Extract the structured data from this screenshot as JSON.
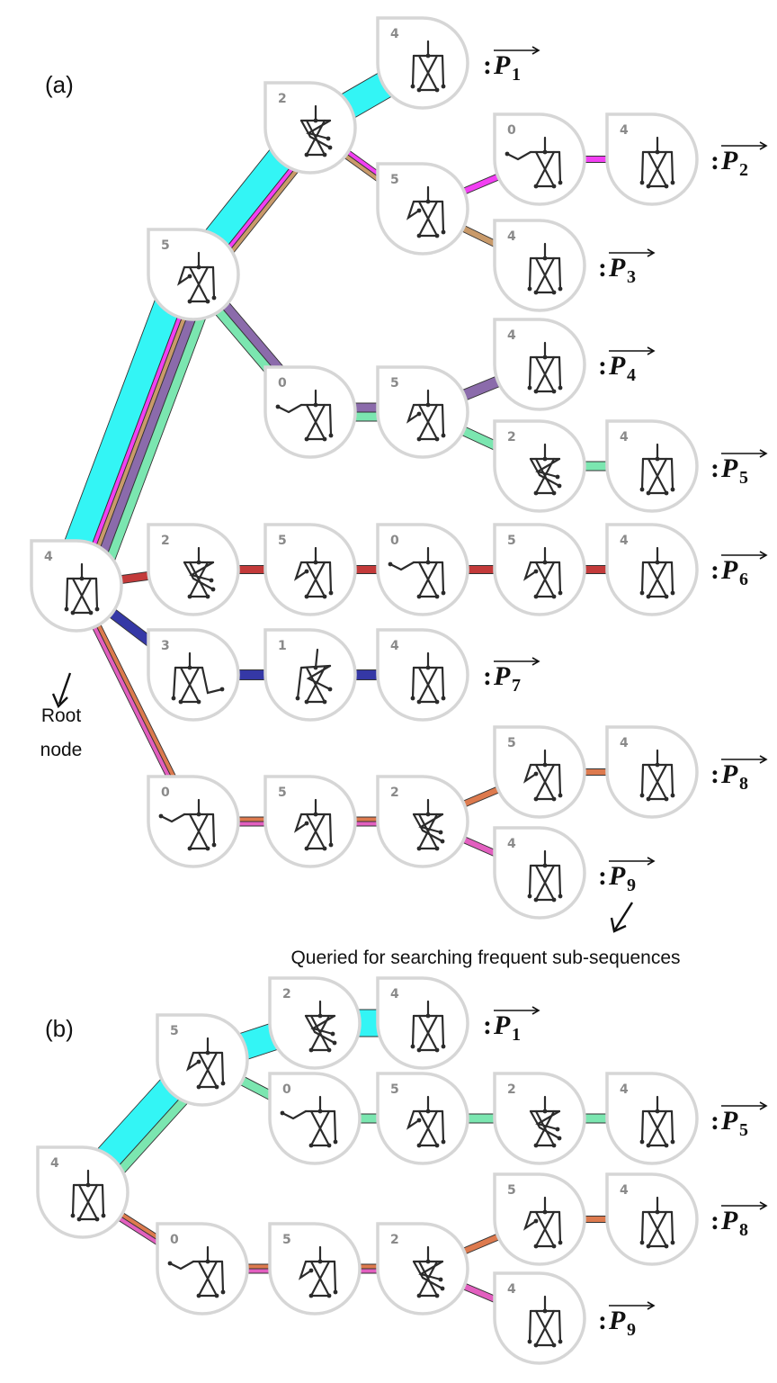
{
  "panels": [
    {
      "id": "a",
      "label": "(a)"
    },
    {
      "id": "b",
      "label": "(b)"
    }
  ],
  "annotations": {
    "root": [
      "Root",
      "node"
    ],
    "query": "Queried for searching frequent sub-sequences"
  },
  "path_label": {
    "colon": ":",
    "letter": "P"
  },
  "colors": {
    "cyan": "#33f5f5",
    "magenta": "#f23ff2",
    "tan": "#c99a6a",
    "purple": "#8b6bab",
    "mint": "#7be6b0",
    "red": "#c33a3a",
    "navy": "#3538a6",
    "pink": "#e25fbf",
    "orange": "#dd7a4e"
  },
  "poses": {
    "0": "arm-extended",
    "1": "arms-crossed-left",
    "2": "arms-crossed",
    "3": "arm-raised-right",
    "4": "standing",
    "5": "arm-bent"
  },
  "nodes_a": [
    {
      "id": "a_root",
      "label": "4"
    },
    {
      "id": "a_5",
      "label": "5"
    },
    {
      "id": "a_2top",
      "label": "2"
    },
    {
      "id": "a_4p1",
      "label": "4"
    },
    {
      "id": "a_5b",
      "label": "5"
    },
    {
      "id": "a_0p2",
      "label": "0"
    },
    {
      "id": "a_4p2",
      "label": "4"
    },
    {
      "id": "a_4p3",
      "label": "4"
    },
    {
      "id": "a_0c",
      "label": "0"
    },
    {
      "id": "a_5c",
      "label": "5"
    },
    {
      "id": "a_4p4",
      "label": "4"
    },
    {
      "id": "a_2p5",
      "label": "2"
    },
    {
      "id": "a_4p5",
      "label": "4"
    },
    {
      "id": "a_2r6",
      "label": "2"
    },
    {
      "id": "a_5r6",
      "label": "5"
    },
    {
      "id": "a_0r6",
      "label": "0"
    },
    {
      "id": "a_5r6b",
      "label": "5"
    },
    {
      "id": "a_4p6",
      "label": "4"
    },
    {
      "id": "a_3r7",
      "label": "3"
    },
    {
      "id": "a_1r7",
      "label": "1"
    },
    {
      "id": "a_4p7",
      "label": "4"
    },
    {
      "id": "a_0r8",
      "label": "0"
    },
    {
      "id": "a_5r8",
      "label": "5"
    },
    {
      "id": "a_2r8",
      "label": "2"
    },
    {
      "id": "a_5p8",
      "label": "5"
    },
    {
      "id": "a_4p8",
      "label": "4"
    },
    {
      "id": "a_4p9",
      "label": "4"
    }
  ],
  "nodes_b": [
    {
      "id": "b_root",
      "label": "4"
    },
    {
      "id": "b_5",
      "label": "5"
    },
    {
      "id": "b_2",
      "label": "2"
    },
    {
      "id": "b_4p1",
      "label": "4"
    },
    {
      "id": "b_0",
      "label": "0"
    },
    {
      "id": "b_5m",
      "label": "5"
    },
    {
      "id": "b_2m",
      "label": "2"
    },
    {
      "id": "b_4p5",
      "label": "4"
    },
    {
      "id": "b_0l",
      "label": "0"
    },
    {
      "id": "b_5l",
      "label": "5"
    },
    {
      "id": "b_2l",
      "label": "2"
    },
    {
      "id": "b_5p8",
      "label": "5"
    },
    {
      "id": "b_4p8",
      "label": "4"
    },
    {
      "id": "b_4p9",
      "label": "4"
    }
  ],
  "paths_a": [
    {
      "sub": "1"
    },
    {
      "sub": "2"
    },
    {
      "sub": "3"
    },
    {
      "sub": "4"
    },
    {
      "sub": "5"
    },
    {
      "sub": "6"
    },
    {
      "sub": "7"
    },
    {
      "sub": "8"
    },
    {
      "sub": "9"
    }
  ],
  "paths_b": [
    {
      "sub": "1"
    },
    {
      "sub": "5"
    },
    {
      "sub": "8"
    },
    {
      "sub": "9"
    }
  ]
}
